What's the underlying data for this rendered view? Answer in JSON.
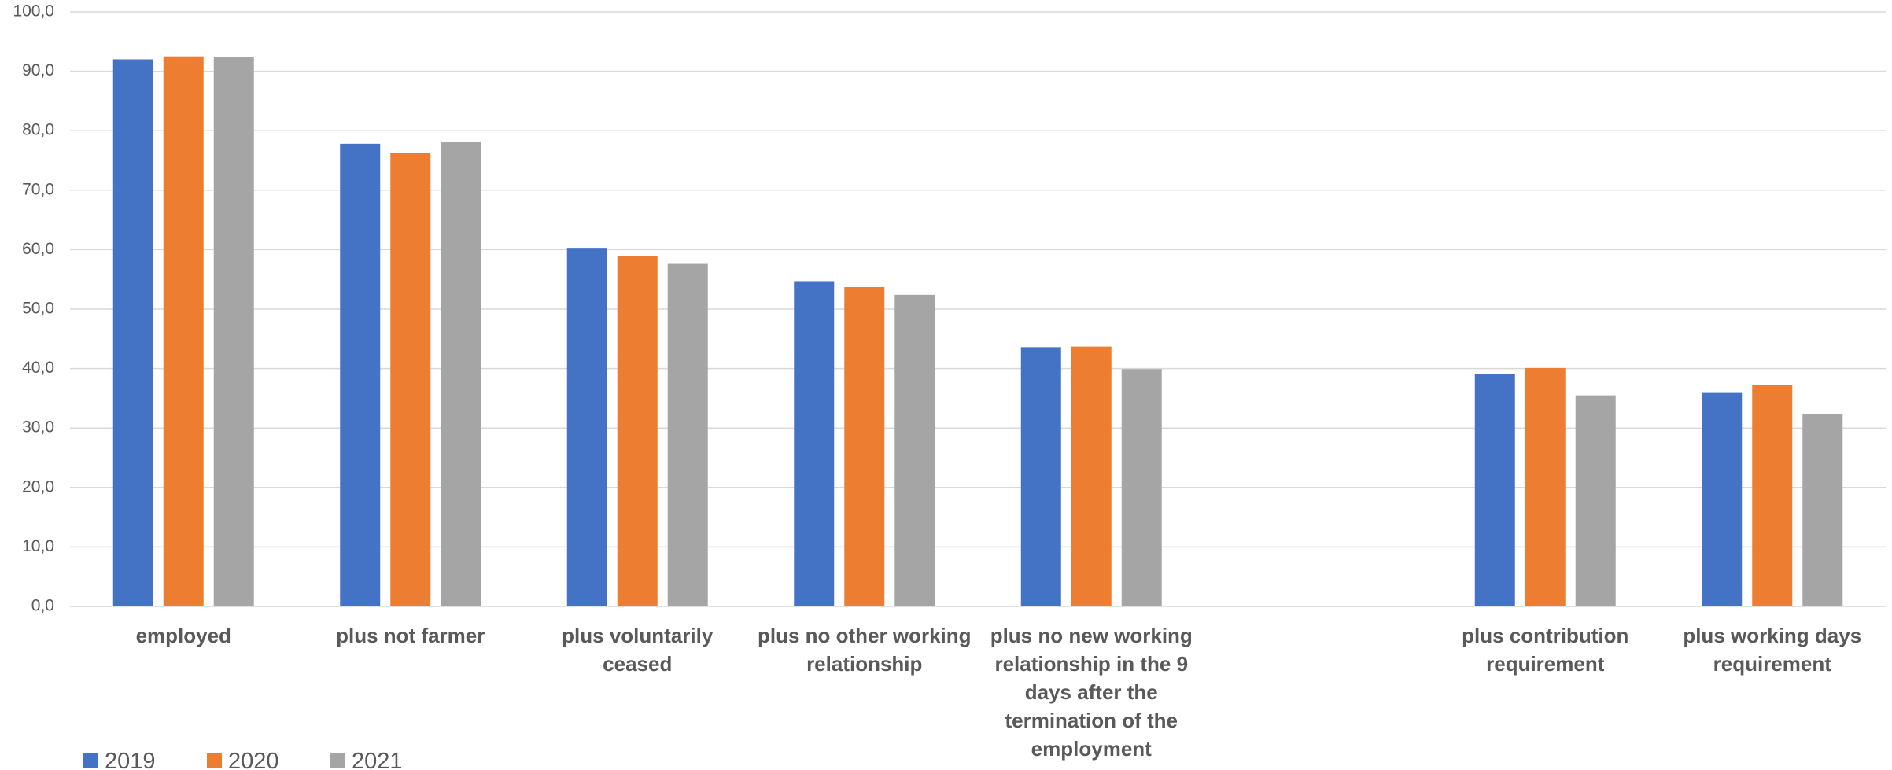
{
  "chart_data": {
    "type": "bar",
    "categories": [
      "employed",
      "plus not farmer",
      "plus voluntarily ceased",
      "plus no other working relationship",
      "plus no new working relationship in the 9 days after the termination of  the employment",
      null,
      "plus contribution requirement",
      "plus working days requirement"
    ],
    "series": [
      {
        "name": "2019",
        "color": "#4472c4",
        "values": [
          92.0,
          77.8,
          60.3,
          54.7,
          43.6,
          null,
          39.1,
          35.9
        ]
      },
      {
        "name": "2020",
        "color": "#ed7d31",
        "values": [
          92.5,
          76.2,
          58.9,
          53.7,
          43.7,
          null,
          40.1,
          37.3
        ]
      },
      {
        "name": "2021",
        "color": "#a5a5a5",
        "values": [
          92.4,
          78.1,
          57.6,
          52.4,
          39.9,
          null,
          35.5,
          32.4
        ]
      }
    ],
    "ylim": [
      0,
      100
    ],
    "yticks": [
      {
        "value": 0,
        "label": "0,0"
      },
      {
        "value": 10,
        "label": "10,0"
      },
      {
        "value": 20,
        "label": "20,0"
      },
      {
        "value": 30,
        "label": "30,0"
      },
      {
        "value": 40,
        "label": "40,0"
      },
      {
        "value": 50,
        "label": "50,0"
      },
      {
        "value": 60,
        "label": "60,0"
      },
      {
        "value": 70,
        "label": "70,0"
      },
      {
        "value": 80,
        "label": "80,0"
      },
      {
        "value": 90,
        "label": "90,0"
      },
      {
        "value": 100,
        "label": "100,0"
      }
    ],
    "grid": true,
    "legend": "bottom-left"
  }
}
